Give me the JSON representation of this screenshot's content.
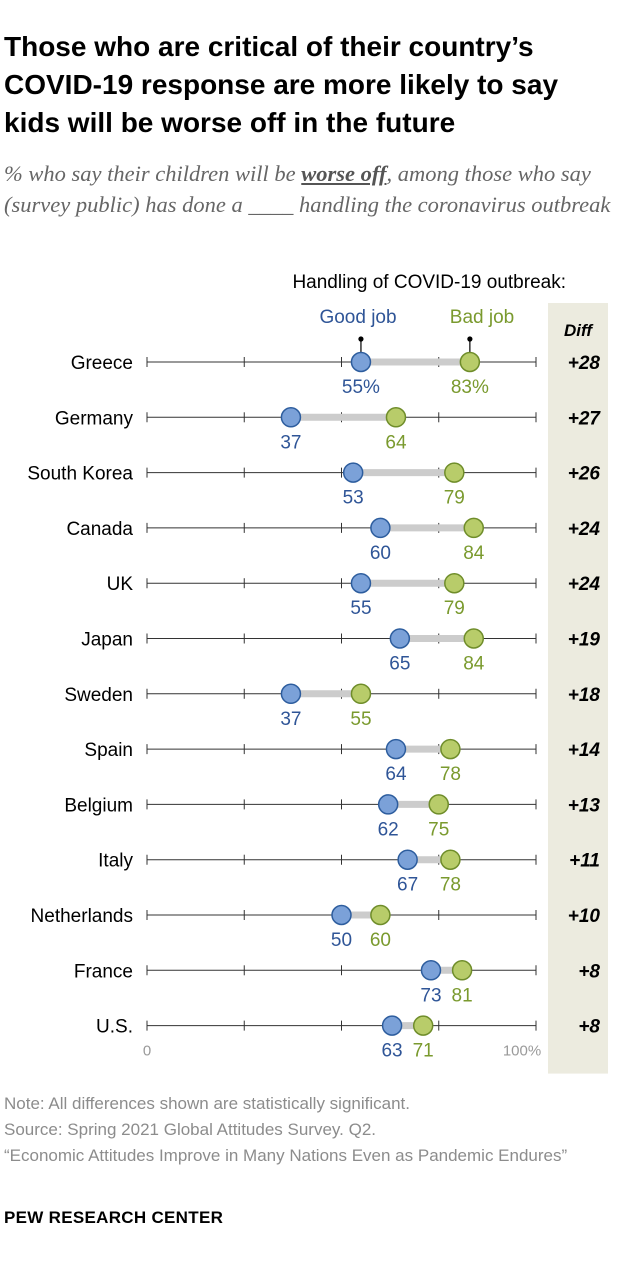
{
  "title": "Those who are critical of their country’s COVID-19 response are more likely to say kids will be worse off in the future",
  "subtitle": {
    "before": "% who say their children will be ",
    "emphasis": "worse off",
    "after": ", among those who say (survey public) has done a ____ handling the coronavirus outbreak"
  },
  "notes": {
    "note": "Note: All differences shown are statistically significant.",
    "source": "Source: Spring 2021 Global Attitudes Survey. Q2.",
    "report": "“Economic Attitudes Improve in Many Nations Even as Pandemic Endures”"
  },
  "brand": "PEW RESEARCH CENTER",
  "colors": {
    "good": "#7ba1d8",
    "good_stroke": "#2d5d9e",
    "good_text": "#2f5597",
    "bad": "#b8cc6a",
    "bad_stroke": "#6f8d2a",
    "bad_text": "#7a9a2e",
    "connector": "#cccccc",
    "axis": "#333333",
    "diff_bg": "#ecebdf"
  },
  "chart_data": {
    "type": "dot",
    "header": "Handling of COVID-19 outbreak:",
    "diff_label": "Diff",
    "x_range": [
      0,
      100
    ],
    "x_ticks": [
      0,
      25,
      50,
      75,
      100
    ],
    "x_tick_labels": [
      "0",
      "100%"
    ],
    "series": [
      {
        "name": "Good job",
        "key": "good"
      },
      {
        "name": "Bad job",
        "key": "bad"
      }
    ],
    "rows": [
      {
        "country": "Greece",
        "good": 55,
        "bad": 83,
        "good_label": "55%",
        "bad_label": "83%",
        "diff": "+28"
      },
      {
        "country": "Germany",
        "good": 37,
        "bad": 64,
        "good_label": "37",
        "bad_label": "64",
        "diff": "+27"
      },
      {
        "country": "South Korea",
        "good": 53,
        "bad": 79,
        "good_label": "53",
        "bad_label": "79",
        "diff": "+26"
      },
      {
        "country": "Canada",
        "good": 60,
        "bad": 84,
        "good_label": "60",
        "bad_label": "84",
        "diff": "+24"
      },
      {
        "country": "UK",
        "good": 55,
        "bad": 79,
        "good_label": "55",
        "bad_label": "79",
        "diff": "+24"
      },
      {
        "country": "Japan",
        "good": 65,
        "bad": 84,
        "good_label": "65",
        "bad_label": "84",
        "diff": "+19"
      },
      {
        "country": "Sweden",
        "good": 37,
        "bad": 55,
        "good_label": "37",
        "bad_label": "55",
        "diff": "+18"
      },
      {
        "country": "Spain",
        "good": 64,
        "bad": 78,
        "good_label": "64",
        "bad_label": "78",
        "diff": "+14"
      },
      {
        "country": "Belgium",
        "good": 62,
        "bad": 75,
        "good_label": "62",
        "bad_label": "75",
        "diff": "+13"
      },
      {
        "country": "Italy",
        "good": 67,
        "bad": 78,
        "good_label": "67",
        "bad_label": "78",
        "diff": "+11"
      },
      {
        "country": "Netherlands",
        "good": 50,
        "bad": 60,
        "good_label": "50",
        "bad_label": "60",
        "diff": "+10"
      },
      {
        "country": "France",
        "good": 73,
        "bad": 81,
        "good_label": "73",
        "bad_label": "81",
        "diff": "+8"
      },
      {
        "country": "U.S.",
        "good": 63,
        "bad": 71,
        "good_label": "63",
        "bad_label": "71",
        "diff": "+8"
      }
    ]
  }
}
